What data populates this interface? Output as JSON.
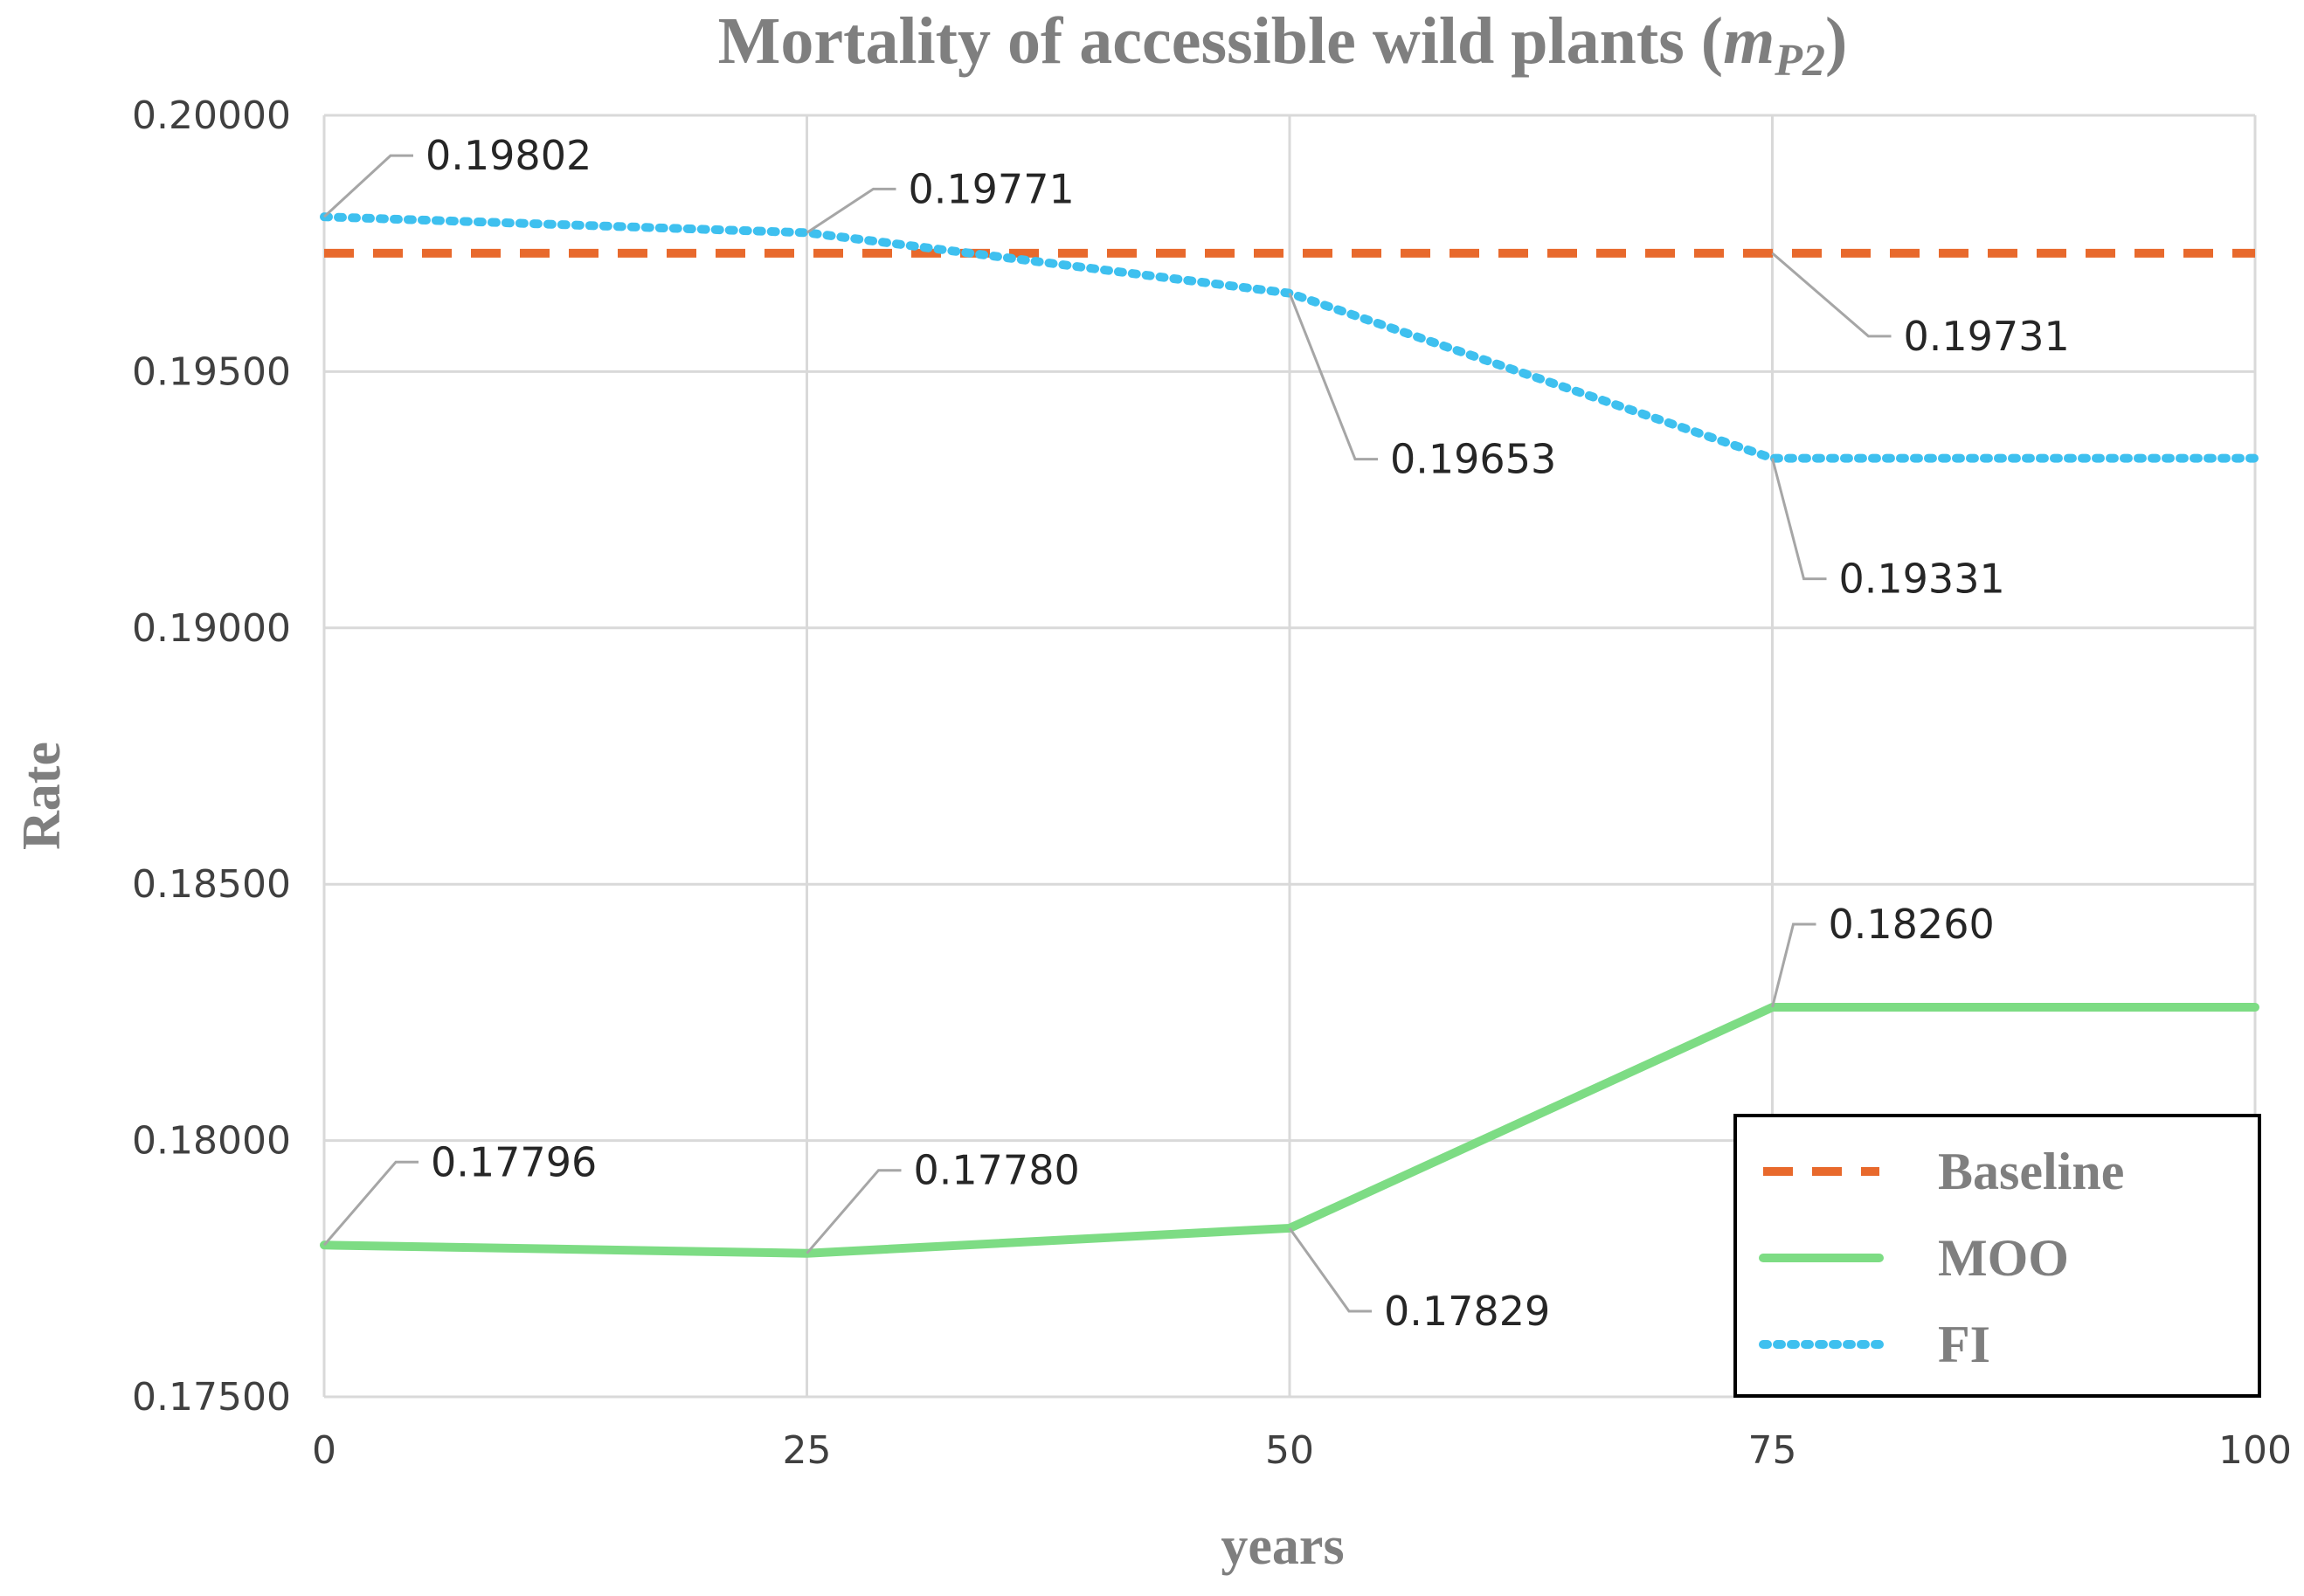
{
  "chart_data": {
    "type": "line",
    "title": "Mortality of accessible wild plants (",
    "title_symbol": "m",
    "title_subscript": "P2",
    "title_close": ")",
    "x_label": "years",
    "y_label": "Rate",
    "x": [
      0,
      25,
      50,
      75,
      100
    ],
    "xlim": [
      0,
      100
    ],
    "xticks": [
      0,
      25,
      50,
      75,
      100
    ],
    "ylim": [
      0.175,
      0.2
    ],
    "yticks": [
      {
        "value": 0.175,
        "label": "0.17500"
      },
      {
        "value": 0.18,
        "label": "0.18000"
      },
      {
        "value": 0.185,
        "label": "0.18500"
      },
      {
        "value": 0.19,
        "label": "0.19000"
      },
      {
        "value": 0.195,
        "label": "0.19500"
      },
      {
        "value": 0.2,
        "label": "0.20000"
      }
    ],
    "grid": true,
    "legend": "lower right",
    "series": [
      {
        "name": "Baseline",
        "color": "#e8692c",
        "style": "dashed",
        "values": [
          0.19731,
          0.19731,
          0.19731,
          0.19731,
          0.19731
        ],
        "value_labels": [
          null,
          null,
          null,
          "0.19731",
          null
        ]
      },
      {
        "name": "MOO",
        "color": "#7ddc84",
        "style": "solid",
        "values": [
          0.17796,
          0.1778,
          0.17829,
          0.1826,
          0.1826
        ],
        "value_labels": [
          "0.17796",
          "0.17780",
          "0.17829",
          "0.18260",
          null
        ]
      },
      {
        "name": "FI",
        "color": "#3ec0ef",
        "style": "dotted",
        "values": [
          0.19802,
          0.19771,
          0.19653,
          0.19331,
          0.19331
        ],
        "value_labels": [
          "0.19802",
          "0.19771",
          "0.19653",
          "0.19331",
          null
        ]
      }
    ]
  }
}
